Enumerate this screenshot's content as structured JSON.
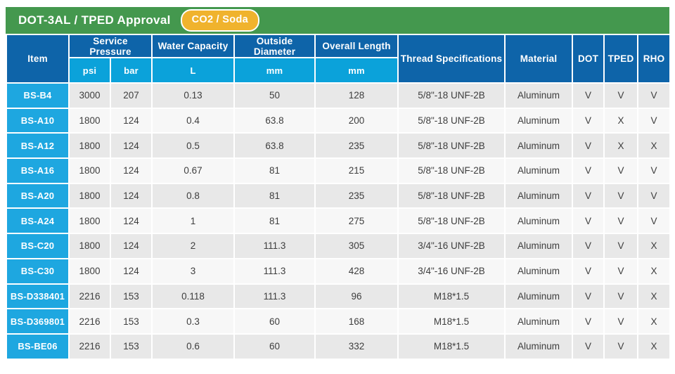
{
  "header": {
    "title": "DOT-3AL / TPED Approval",
    "badge": "CO2 / Soda"
  },
  "colors": {
    "title_bar_green": "#44984e",
    "badge_yellow": "#f0b32d",
    "header_dark_blue": "#0e64a9",
    "header_light_blue": "#0ba2da",
    "item_cell_cyan": "#1ea7e0",
    "row_gray": "#e8e8e8",
    "row_light": "#f7f7f7",
    "cell_text": "#3e3e3e"
  },
  "table": {
    "columns": {
      "item": "Item",
      "service_pressure": "Service Pressure",
      "psi": "psi",
      "bar": "bar",
      "water_capacity": "Water Capacity",
      "water_capacity_unit": "L",
      "outside_diameter": "Outside Diameter",
      "outside_diameter_unit": "mm",
      "overall_length": "Overall Length",
      "overall_length_unit": "mm",
      "thread_specifications": "Thread Specifications",
      "material": "Material",
      "dot": "DOT",
      "tped": "TPED",
      "rho": "RHO"
    },
    "rows": [
      {
        "item": "BS-B4",
        "psi": "3000",
        "bar": "207",
        "water_capacity_l": "0.13",
        "outside_diameter_mm": "50",
        "overall_length_mm": "128",
        "thread_specifications": "5/8\"-18 UNF-2B",
        "material": "Aluminum",
        "dot": "V",
        "tped": "V",
        "rho": "V"
      },
      {
        "item": "BS-A10",
        "psi": "1800",
        "bar": "124",
        "water_capacity_l": "0.4",
        "outside_diameter_mm": "63.8",
        "overall_length_mm": "200",
        "thread_specifications": "5/8\"-18 UNF-2B",
        "material": "Aluminum",
        "dot": "V",
        "tped": "X",
        "rho": "V"
      },
      {
        "item": "BS-A12",
        "psi": "1800",
        "bar": "124",
        "water_capacity_l": "0.5",
        "outside_diameter_mm": "63.8",
        "overall_length_mm": "235",
        "thread_specifications": "5/8\"-18 UNF-2B",
        "material": "Aluminum",
        "dot": "V",
        "tped": "X",
        "rho": "X"
      },
      {
        "item": "BS-A16",
        "psi": "1800",
        "bar": "124",
        "water_capacity_l": "0.67",
        "outside_diameter_mm": "81",
        "overall_length_mm": "215",
        "thread_specifications": "5/8\"-18 UNF-2B",
        "material": "Aluminum",
        "dot": "V",
        "tped": "V",
        "rho": "V"
      },
      {
        "item": "BS-A20",
        "psi": "1800",
        "bar": "124",
        "water_capacity_l": "0.8",
        "outside_diameter_mm": "81",
        "overall_length_mm": "235",
        "thread_specifications": "5/8\"-18 UNF-2B",
        "material": "Aluminum",
        "dot": "V",
        "tped": "V",
        "rho": "V"
      },
      {
        "item": "BS-A24",
        "psi": "1800",
        "bar": "124",
        "water_capacity_l": "1",
        "outside_diameter_mm": "81",
        "overall_length_mm": "275",
        "thread_specifications": "5/8\"-18 UNF-2B",
        "material": "Aluminum",
        "dot": "V",
        "tped": "V",
        "rho": "V"
      },
      {
        "item": "BS-C20",
        "psi": "1800",
        "bar": "124",
        "water_capacity_l": "2",
        "outside_diameter_mm": "111.3",
        "overall_length_mm": "305",
        "thread_specifications": "3/4\"-16 UNF-2B",
        "material": "Aluminum",
        "dot": "V",
        "tped": "V",
        "rho": "X"
      },
      {
        "item": "BS-C30",
        "psi": "1800",
        "bar": "124",
        "water_capacity_l": "3",
        "outside_diameter_mm": "111.3",
        "overall_length_mm": "428",
        "thread_specifications": "3/4\"-16 UNF-2B",
        "material": "Aluminum",
        "dot": "V",
        "tped": "V",
        "rho": "X"
      },
      {
        "item": "BS-D338401",
        "psi": "2216",
        "bar": "153",
        "water_capacity_l": "0.118",
        "outside_diameter_mm": "111.3",
        "overall_length_mm": "96",
        "thread_specifications": "M18*1.5",
        "material": "Aluminum",
        "dot": "V",
        "tped": "V",
        "rho": "X"
      },
      {
        "item": "BS-D369801",
        "psi": "2216",
        "bar": "153",
        "water_capacity_l": "0.3",
        "outside_diameter_mm": "60",
        "overall_length_mm": "168",
        "thread_specifications": "M18*1.5",
        "material": "Aluminum",
        "dot": "V",
        "tped": "V",
        "rho": "X"
      },
      {
        "item": "BS-BE06",
        "psi": "2216",
        "bar": "153",
        "water_capacity_l": "0.6",
        "outside_diameter_mm": "60",
        "overall_length_mm": "332",
        "thread_specifications": "M18*1.5",
        "material": "Aluminum",
        "dot": "V",
        "tped": "V",
        "rho": "X"
      }
    ]
  }
}
